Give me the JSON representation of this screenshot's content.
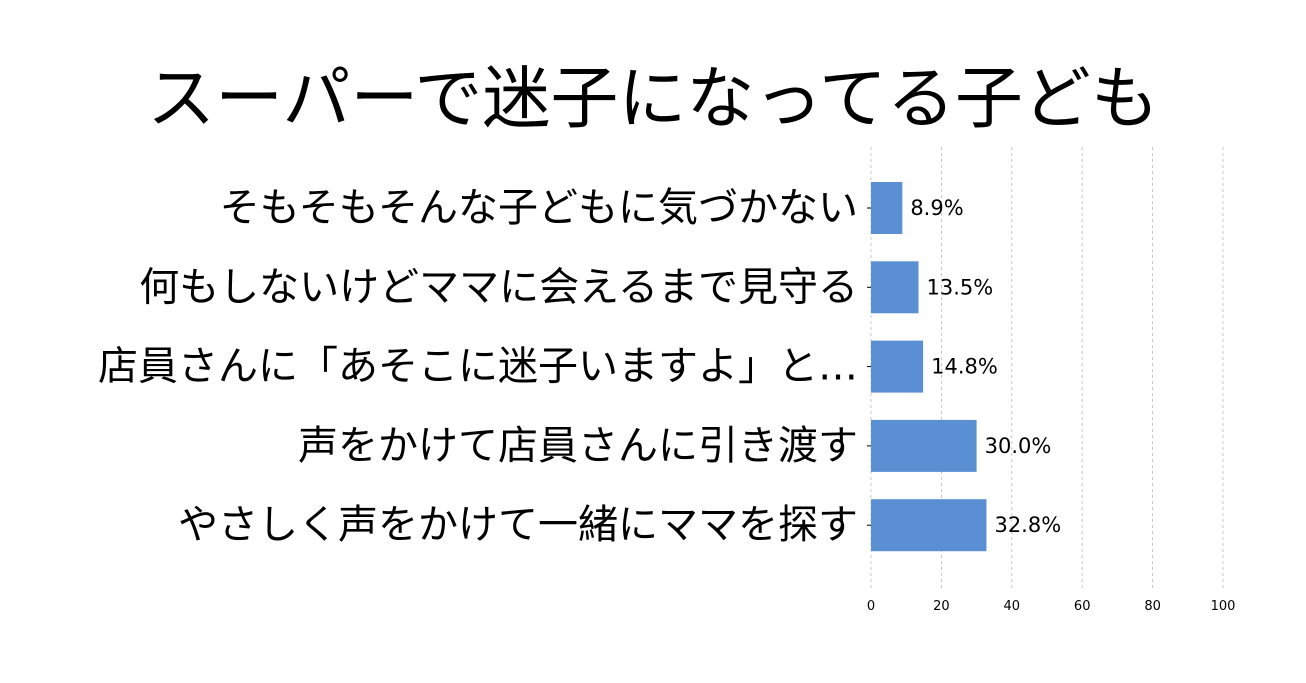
{
  "chart_data": {
    "type": "bar",
    "orientation": "horizontal",
    "title": "スーパーで迷子になってる子ども",
    "categories": [
      "そもそもそんな子どもに気づかない",
      "何もしないけどママに会えるまで見守る",
      "店員さんに「あそこに迷子いますよ」と…",
      "声をかけて店員さんに引き渡す",
      "やさしく声をかけて一緒にママを探す"
    ],
    "values": [
      8.9,
      13.5,
      14.8,
      30.0,
      32.8
    ],
    "value_labels": [
      "8.9%",
      "13.5%",
      "14.8%",
      "30.0%",
      "32.8%"
    ],
    "xlim": [
      0,
      100
    ],
    "xticks": [
      0,
      20,
      40,
      60,
      80,
      100
    ],
    "xlabel": "",
    "ylabel": "",
    "grid": "vertical dashed",
    "legend": "none",
    "colors": {
      "bar": "#5b8fd3",
      "grid": "#bbbbbb",
      "text": "#000000"
    }
  }
}
